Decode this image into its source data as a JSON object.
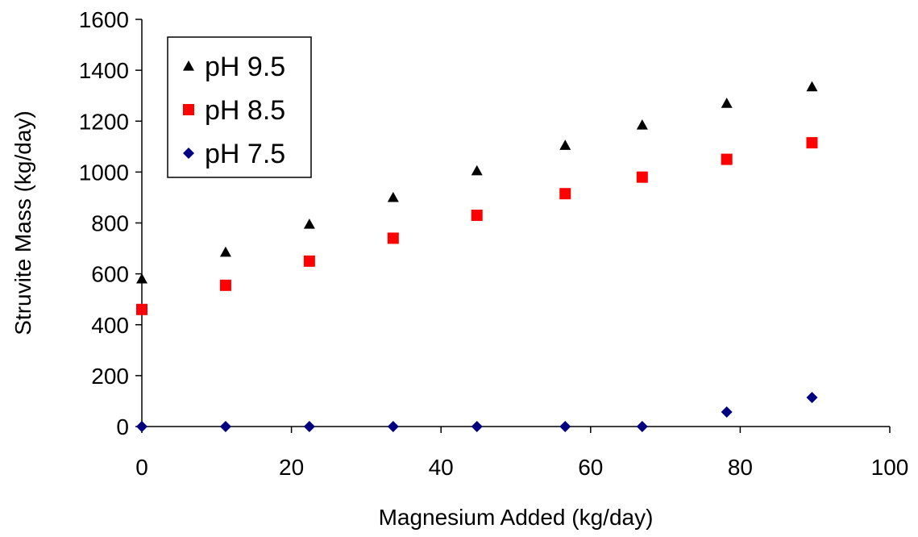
{
  "chart_data": {
    "type": "scatter",
    "title": "",
    "xlabel": "Magnesium Added (kg/day)",
    "ylabel": "Struvite Mass (kg/day)",
    "xlim": [
      0,
      100
    ],
    "ylim": [
      0,
      1600
    ],
    "xticks": [
      "0",
      "20",
      "40",
      "60",
      "80",
      "100"
    ],
    "yticks": [
      "0",
      "200",
      "400",
      "600",
      "800",
      "1000",
      "1200",
      "1400",
      "1600"
    ],
    "grid": false,
    "legend_position": "top-left",
    "series": [
      {
        "name": "pH 9.5",
        "marker": "triangle",
        "color": "#000000",
        "x": [
          0,
          11.2,
          22.4,
          33.6,
          44.8,
          56.6,
          66.9,
          78.2,
          89.6
        ],
        "y": [
          580,
          685,
          795,
          900,
          1005,
          1105,
          1185,
          1270,
          1335
        ]
      },
      {
        "name": "pH 8.5",
        "marker": "square",
        "color": "#ff0000",
        "x": [
          0,
          11.2,
          22.4,
          33.6,
          44.8,
          56.6,
          66.9,
          78.2,
          89.6
        ],
        "y": [
          460,
          555,
          650,
          740,
          830,
          915,
          980,
          1050,
          1115
        ]
      },
      {
        "name": "pH 7.5",
        "marker": "diamond",
        "color": "#000080",
        "x": [
          0,
          11.2,
          22.4,
          33.6,
          44.8,
          56.6,
          66.9,
          78.2,
          89.6
        ],
        "y": [
          0,
          0,
          0,
          0,
          0,
          0,
          0,
          57,
          114
        ]
      }
    ]
  }
}
